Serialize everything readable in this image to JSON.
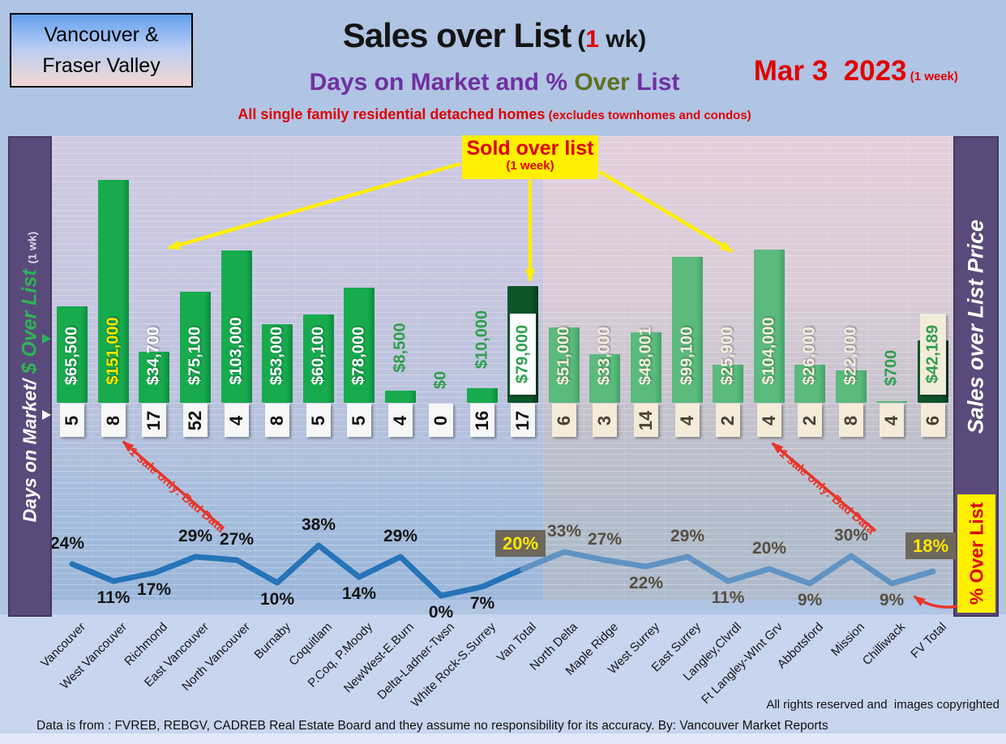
{
  "header": {
    "region_line1": "Vancouver &",
    "region_line2": "Fraser Valley",
    "title": "Sales over List",
    "paren_pre": "(",
    "paren_num": "1",
    "paren_post": " wk)",
    "subtitle_pre": "Days on Market and % ",
    "subtitle_accent": "Over",
    "subtitle_post": " List",
    "tagline": "All single family residential detached homes",
    "tagline_paren": " (excludes townhomes and condos)",
    "date": "Mar 3  2023",
    "date_note": " (1 week)"
  },
  "sidebars": {
    "left_main": "Days on Market/ ",
    "left_accent": "$ Over List ",
    "left_note": "(1 wk)",
    "right_label": "Sales over List Price",
    "right_pct_label": "% Over List"
  },
  "callout": {
    "title": "Sold over list",
    "note": "(1 week)"
  },
  "annotations": {
    "bad_data": "1 sale only: Bad Data"
  },
  "footer": {
    "rights": "All rights reserved and  images copyrighted",
    "source": "Data is from : FVREB, REBGV, CADREB Real Estate Board and they assume no responsibility for its accuracy. By: Vancouver Market Reports"
  },
  "colors": {
    "van_bar": "#17ab4e",
    "van_bar_edge": "#0f8a40",
    "fv_bar": "#5bba7d",
    "fv_bar_edge": "#44a267",
    "total_bar": "#0e5429",
    "total_bar_edge": "#083a1b",
    "green_label": "#2f9e4d",
    "highlight_label": "#ffe600",
    "line": "#2673b8",
    "line_fv": "#6093c3",
    "accent_red": "#e00000",
    "annotation_red": "#e8352a",
    "yellow": "#ffef00",
    "purple_sidebar": "#5a4a7b",
    "subtitle_purple": "#7030a0",
    "subtitle_olive": "#5e7123",
    "pct_box_bg": "#6d675c",
    "pct_box_text": "#ffe600",
    "day_box_van": "#f7f7f7",
    "day_box_fv": "#f5ebd9"
  },
  "chart_data": {
    "type": "combo: bar + line",
    "title": "Sales over List (1 wk)",
    "subtitle": "Days on Market and % Over List",
    "date_label": "Mar 3  2023 (1 week)",
    "categories": [
      "Vancouver",
      "West Vancouver",
      "Richmond",
      "East Vancouver",
      "North Vancouver",
      "Burnaby",
      "Coquitlam",
      "P.Coq, P.Moody",
      "NewWest-E.Burn",
      "Delta-Ladner-Twsn",
      "White Rock-S.Surrey",
      "Van Total",
      "North Delta",
      "Maple Ridge",
      "West Surrey",
      "East Surrey",
      "Langley,Clvrdl",
      "Ft Langley-WInt Grv",
      "Abbotsford",
      "Mission",
      "Chilliwack",
      "FV Total"
    ],
    "series": [
      {
        "name": "$ Over List (1 wk)",
        "type": "bar",
        "values": [
          65500,
          151000,
          34700,
          75100,
          103000,
          53000,
          60100,
          78000,
          8500,
          0,
          10000,
          79000,
          51000,
          33000,
          48001,
          99100,
          25900,
          104000,
          26000,
          22000,
          700,
          42189
        ]
      },
      {
        "name": "Days on Market",
        "type": "labels",
        "values": [
          5,
          8,
          17,
          52,
          4,
          8,
          5,
          5,
          4,
          0,
          16,
          17,
          6,
          3,
          14,
          4,
          2,
          4,
          2,
          8,
          4,
          6
        ]
      },
      {
        "name": "% Over List",
        "type": "line",
        "values": [
          24,
          11,
          17,
          29,
          27,
          10,
          38,
          14,
          29,
          0,
          7,
          20,
          33,
          27,
          22,
          29,
          11,
          20,
          9,
          30,
          9,
          18
        ]
      }
    ],
    "groups": {
      "vancouver_indices": [
        0,
        11
      ],
      "fraser_valley_indices": [
        12,
        21
      ]
    },
    "totals_indices": [
      11,
      21
    ],
    "bar_axis_range": [
      0,
      160000
    ],
    "pct_axis_range": [
      0,
      40
    ],
    "gridlines": true,
    "legend": "none"
  }
}
